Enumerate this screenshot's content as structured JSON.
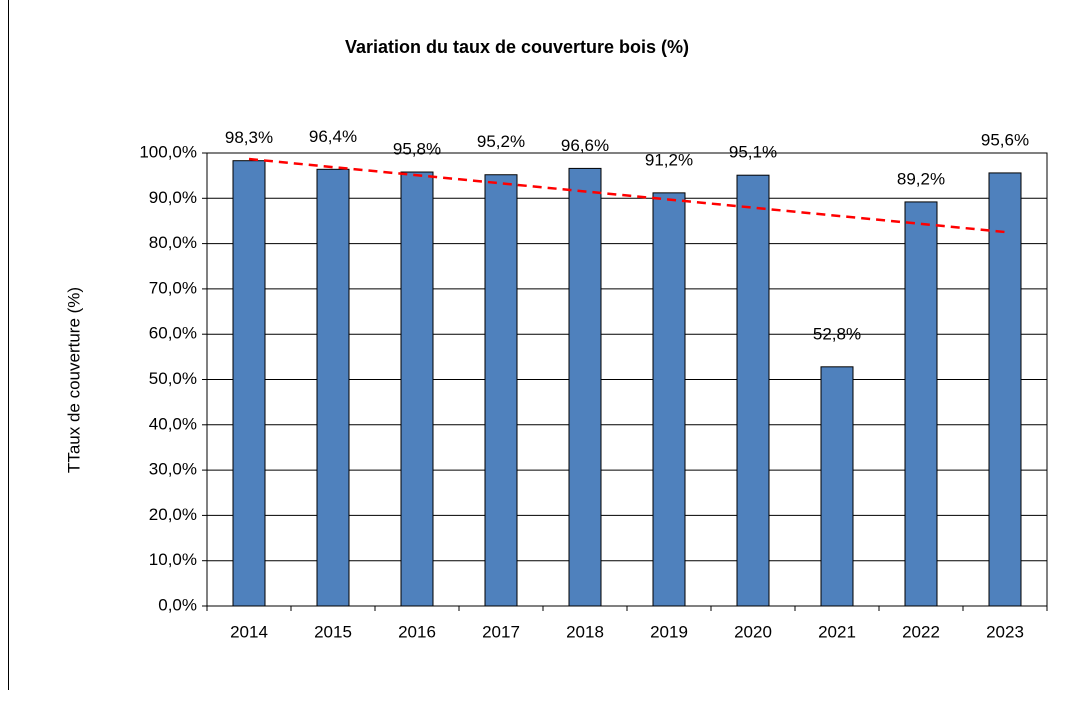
{
  "chart_data": {
    "type": "bar",
    "title": "Variation du taux de couverture bois (%)",
    "y_label": "TTaux de couverture  (%)",
    "categories": [
      "2014",
      "2015",
      "2016",
      "2017",
      "2018",
      "2019",
      "2020",
      "2021",
      "2022",
      "2023"
    ],
    "values": [
      98.3,
      96.4,
      95.8,
      95.2,
      96.6,
      91.2,
      95.1,
      52.8,
      89.2,
      95.6
    ],
    "value_labels": [
      "98,3%",
      "96,4%",
      "95,8%",
      "95,2%",
      "96,6%",
      "91,2%",
      "95,1%",
      "52,8%",
      "89,2%",
      "95,6%"
    ],
    "color": "#4f81bd",
    "ylim": [
      0,
      100
    ],
    "yticks": [
      {
        "value": 0,
        "label": "0,0%"
      },
      {
        "value": 10,
        "label": "10,0%"
      },
      {
        "value": 20,
        "label": "20,0%"
      },
      {
        "value": 30,
        "label": "30,0%"
      },
      {
        "value": 40,
        "label": "40,0%"
      },
      {
        "value": 50,
        "label": "50,0%"
      },
      {
        "value": 60,
        "label": "60,0%"
      },
      {
        "value": 70,
        "label": "70,0%"
      },
      {
        "value": 80,
        "label": "80,0%"
      },
      {
        "value": 90,
        "label": "90,0%"
      },
      {
        "value": 100,
        "label": "100,0%"
      }
    ],
    "grid": true,
    "trendline": true,
    "trendline_color": "#ff0000"
  }
}
